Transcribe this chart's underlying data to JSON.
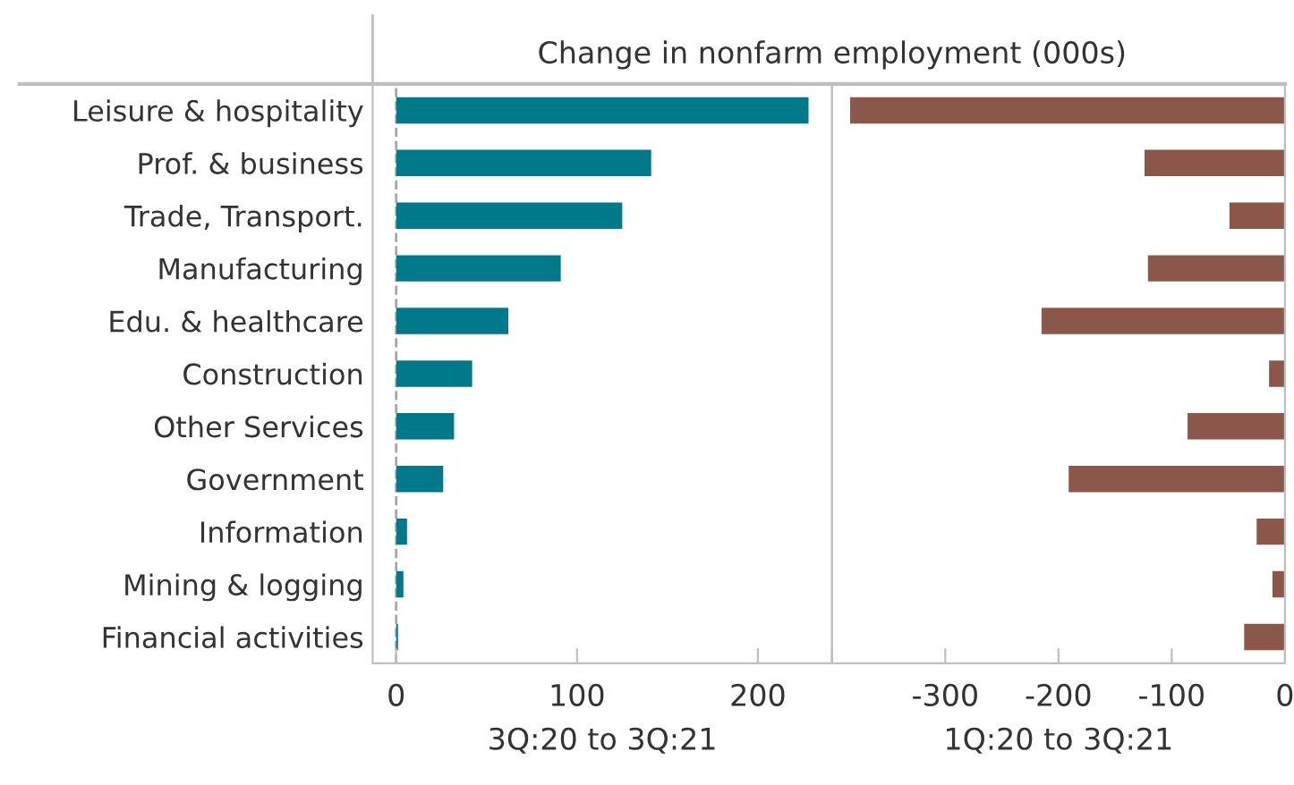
{
  "chart_data": [
    {
      "type": "bar",
      "orientation": "horizontal",
      "title": "Change in nonfarm employment (000s)",
      "xlabel": "3Q:20 to 3Q:21",
      "categories": [
        "Leisure & hospitality",
        "Prof. & business",
        "Trade, Transport.",
        "Manufacturing",
        "Edu. & healthcare",
        "Construction",
        "Other Services",
        "Government",
        "Information",
        "Mining & logging",
        "Financial activities"
      ],
      "values": [
        228,
        141,
        125,
        91,
        62,
        42,
        32,
        26,
        6,
        4,
        1
      ],
      "color": "#007a8a",
      "xlim": [
        -13,
        241
      ],
      "xticks": [
        0,
        100,
        200
      ],
      "ref_lines": [
        {
          "axis": "x",
          "value": 0,
          "color": "#a6a6a6",
          "line_style": "dashed"
        }
      ]
    },
    {
      "type": "bar",
      "orientation": "horizontal",
      "xlabel": "1Q:20 to 3Q:21",
      "categories": [
        null,
        null,
        null,
        null,
        null,
        null,
        null,
        null,
        null,
        null,
        null
      ],
      "values": [
        -384,
        -124,
        -49,
        -121,
        -215,
        -14,
        -86,
        -191,
        -25,
        -11,
        -36
      ],
      "color": "#8b574a",
      "xlim": [
        -400,
        0
      ],
      "xticks": [
        {
          "value": -400,
          "label": null
        },
        -300,
        -200,
        -100,
        0
      ],
      "tick_labels": "x"
    }
  ]
}
